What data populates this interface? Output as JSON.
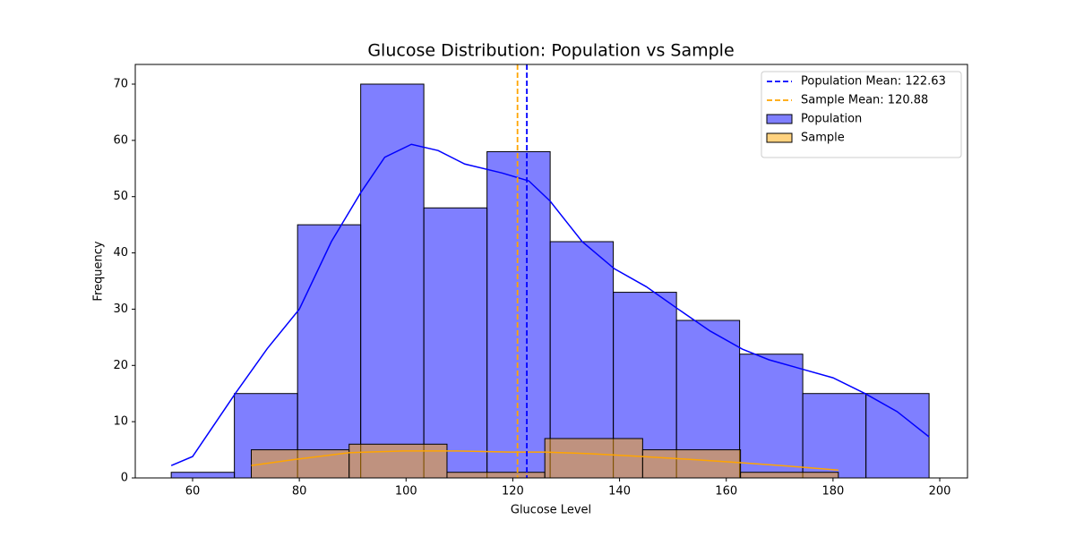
{
  "chart_data": {
    "type": "histogram",
    "title": "Glucose Distribution: Population vs Sample",
    "x_label": "Glucose Level",
    "y_label": "Frequency",
    "xlim": [
      49.26,
      205.2
    ],
    "ylim": [
      0,
      73.5
    ],
    "xticks": [
      60,
      80,
      100,
      120,
      140,
      160,
      180,
      200
    ],
    "yticks": [
      0,
      10,
      20,
      30,
      40,
      50,
      60,
      70
    ],
    "legend": "upper right",
    "series": [
      {
        "name": "Population",
        "color": "#0000ff",
        "bins": [
          56,
          67.83,
          79.67,
          91.5,
          103.33,
          115.17,
          127,
          138.83,
          150.67,
          162.5,
          174.33,
          186.17,
          198
        ],
        "counts": [
          1,
          15,
          45,
          70,
          48,
          58,
          42,
          33,
          28,
          22,
          15,
          15
        ],
        "kde": {
          "x": [
            56,
            60,
            68,
            74,
            80,
            86,
            91.5,
            96,
            101,
            106,
            111,
            118,
            123,
            127,
            133,
            139,
            145,
            151,
            157,
            163,
            168,
            174,
            180,
            186,
            192,
            198
          ],
          "y": [
            2.2,
            3.8,
            15,
            23,
            30,
            42,
            50.7,
            57,
            59.3,
            58.2,
            55.8,
            54.2,
            52.8,
            49.2,
            42,
            37.2,
            34,
            30,
            26.1,
            22.9,
            21,
            19.4,
            17.8,
            15,
            11.8,
            7.3
          ]
        }
      },
      {
        "name": "Sample",
        "color": "#ffa500",
        "bins": [
          71,
          89.33,
          107.67,
          126,
          144.33,
          162.67,
          181
        ],
        "counts": [
          5,
          6,
          1,
          7,
          5,
          1
        ],
        "kde": {
          "x": [
            71,
            79.3,
            89.5,
            99.5,
            109.5,
            119.6,
            126,
            134.7,
            144.4,
            154.8,
            162.7,
            171.6,
            181
          ],
          "y": [
            2.2,
            3.3,
            4.5,
            4.8,
            4.8,
            4.6,
            4.6,
            4.3,
            3.8,
            3.2,
            2.7,
            2.1,
            1.4
          ]
        }
      }
    ],
    "mean_lines": [
      {
        "label": "Population Mean: 122.63",
        "value": 122.63,
        "color": "#0000ff"
      },
      {
        "label": "Sample Mean: 120.88",
        "value": 120.88,
        "color": "#ffa500"
      }
    ]
  }
}
